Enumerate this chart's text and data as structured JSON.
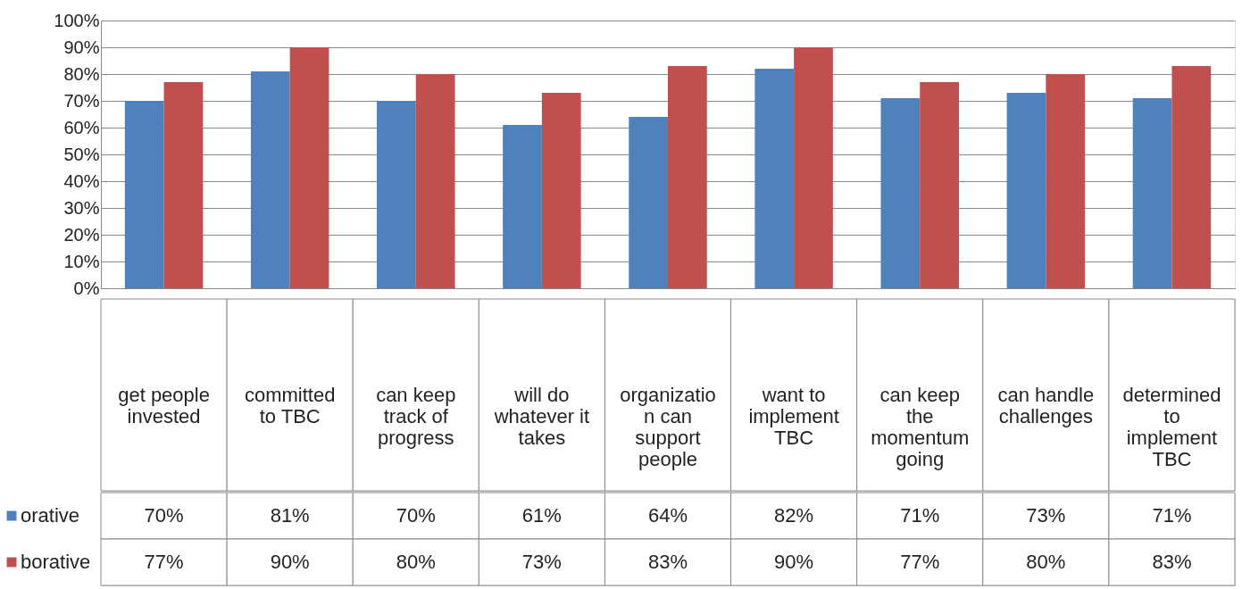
{
  "chart_data": {
    "type": "bar",
    "categories": [
      "get people invested",
      "committed to TBC",
      "can keep track of progress",
      "will do whatever it takes",
      "organization can support people",
      "want to implement TBC",
      "can keep the momentum going",
      "can handle challenges",
      "determined to implement TBC"
    ],
    "series": [
      {
        "name": "orative",
        "color": "#4f81bd",
        "values": [
          70,
          81,
          70,
          61,
          64,
          82,
          71,
          73,
          71
        ],
        "value_labels": [
          "70%",
          "81%",
          "70%",
          "61%",
          "64%",
          "82%",
          "71%",
          "73%",
          "71%"
        ]
      },
      {
        "name": "borative",
        "color": "#c0504d",
        "values": [
          77,
          90,
          80,
          73,
          83,
          90,
          77,
          80,
          83
        ],
        "value_labels": [
          "77%",
          "90%",
          "80%",
          "73%",
          "83%",
          "90%",
          "77%",
          "80%",
          "83%"
        ]
      }
    ],
    "ylim": [
      0,
      100
    ],
    "yticks": [
      {
        "value": 0,
        "label": "0%"
      },
      {
        "value": 10,
        "label": "10%"
      },
      {
        "value": 20,
        "label": "20%"
      },
      {
        "value": 30,
        "label": "30%"
      },
      {
        "value": 40,
        "label": "40%"
      },
      {
        "value": 50,
        "label": "50%"
      },
      {
        "value": 60,
        "label": "60%"
      },
      {
        "value": 70,
        "label": "70%"
      },
      {
        "value": 80,
        "label": "80%"
      },
      {
        "value": 90,
        "label": "90%"
      },
      {
        "value": 100,
        "label": "100%"
      }
    ],
    "grid": "y",
    "legend": "bottom left"
  }
}
